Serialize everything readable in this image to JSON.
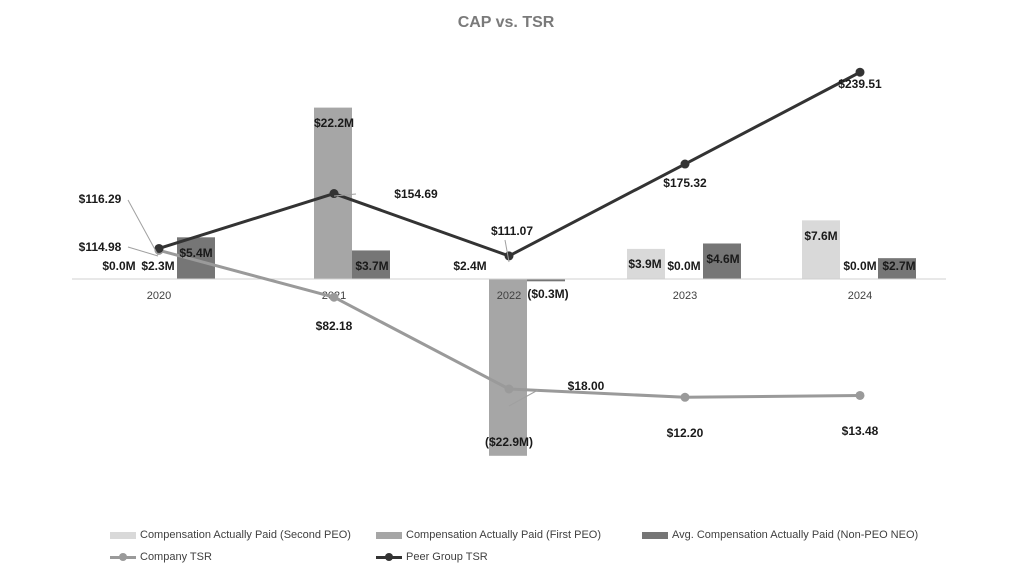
{
  "chart_data": {
    "type": "bar",
    "title": "CAP vs. TSR",
    "categories": [
      "2020",
      "2021",
      "2022",
      "2023",
      "2024"
    ],
    "bar_unit": "$M",
    "series": [
      {
        "name": "Compensation Actually Paid (Second PEO)",
        "kind": "bar",
        "color": "#d9d9d9",
        "values": [
          null,
          null,
          null,
          3.9,
          7.6
        ],
        "labels": [
          "",
          "",
          "",
          "$3.9M",
          "$7.6M"
        ]
      },
      {
        "name": "Compensation Actually Paid (First PEO)",
        "kind": "bar",
        "color": "#a6a6a6",
        "values": [
          0.0,
          22.2,
          -22.9,
          0.0,
          0.0
        ],
        "labels": [
          "$0.0M",
          "$22.2M",
          "($22.9M)",
          "$0.0M",
          "$0.0M"
        ]
      },
      {
        "name": "Avg. Compensation Actually Paid (Non-PEO NEO)",
        "kind": "bar",
        "color": "#767676",
        "values": [
          5.4,
          3.7,
          -0.3,
          4.6,
          2.7
        ],
        "labels": [
          "$5.4M",
          "$3.7M",
          "($0.3M)",
          "$4.6M",
          "$2.7M"
        ]
      },
      {
        "name": "Company TSR",
        "kind": "line",
        "color": "#9a9a9a",
        "values": [
          114.98,
          82.18,
          18.0,
          12.2,
          13.48
        ],
        "labels": [
          "$114.98",
          "$82.18",
          "$18.00",
          "$12.20",
          "$13.48"
        ]
      },
      {
        "name": "Peer Group TSR",
        "kind": "line",
        "color": "#333333",
        "values": [
          116.29,
          154.69,
          111.07,
          175.32,
          239.51
        ],
        "labels": [
          "$116.29",
          "$154.69",
          "$111.07",
          "$175.32",
          "$239.51"
        ]
      }
    ],
    "extra_labels": [
      "$2.3M",
      "$2.4M"
    ],
    "axis": "single category axis at zero; no gridlines; value axes hidden",
    "legend": "bottom"
  }
}
